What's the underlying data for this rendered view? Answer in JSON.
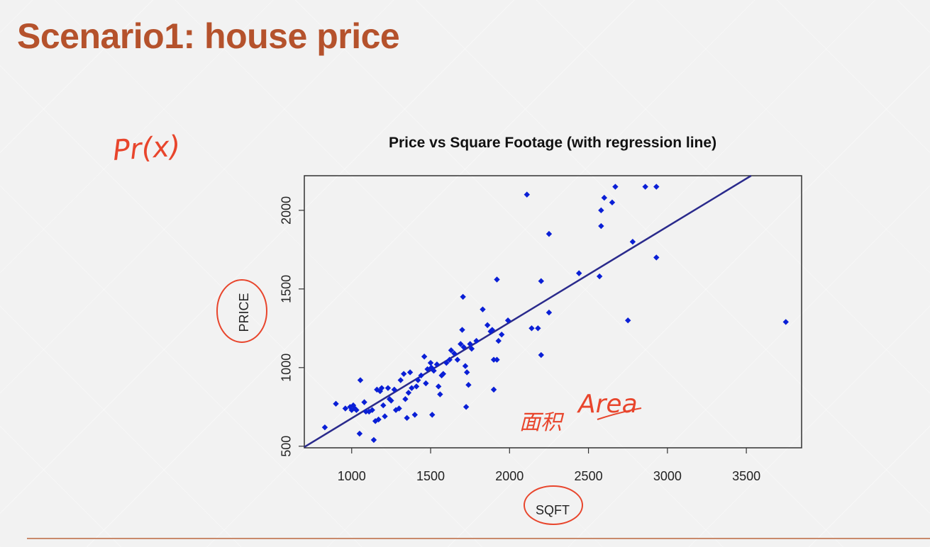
{
  "slide": {
    "title": "Scenario1: house price"
  },
  "annotations": {
    "pr_x": "Pr(x)",
    "area": "Area",
    "area_prefix": "面积"
  },
  "colors": {
    "title": "#b5522c",
    "points": "#0a1fd6",
    "regression_line": "#2a2a8c",
    "ink": "#e8452c"
  },
  "chart_data": {
    "type": "scatter",
    "title": "Price vs Square Footage (with regression line)",
    "xlabel": "SQFT",
    "ylabel": "PRICE",
    "xlim": [
      700,
      3850
    ],
    "ylim": [
      490,
      2220
    ],
    "xticks": [
      1000,
      1500,
      2000,
      2500,
      3000,
      3500
    ],
    "yticks": [
      500,
      1000,
      1500,
      2000
    ],
    "grid": false,
    "regression_line": {
      "x": [
        700,
        3530
      ],
      "y": [
        495,
        2220
      ]
    },
    "points": [
      [
        830,
        620
      ],
      [
        900,
        770
      ],
      [
        960,
        740
      ],
      [
        990,
        750
      ],
      [
        1000,
        730
      ],
      [
        1010,
        760
      ],
      [
        1020,
        740
      ],
      [
        1030,
        730
      ],
      [
        1050,
        580
      ],
      [
        1055,
        920
      ],
      [
        1080,
        780
      ],
      [
        1090,
        720
      ],
      [
        1110,
        720
      ],
      [
        1130,
        730
      ],
      [
        1140,
        540
      ],
      [
        1150,
        660
      ],
      [
        1160,
        860
      ],
      [
        1170,
        670
      ],
      [
        1180,
        850
      ],
      [
        1190,
        870
      ],
      [
        1200,
        760
      ],
      [
        1210,
        690
      ],
      [
        1230,
        870
      ],
      [
        1240,
        800
      ],
      [
        1250,
        790
      ],
      [
        1270,
        860
      ],
      [
        1280,
        730
      ],
      [
        1300,
        740
      ],
      [
        1310,
        920
      ],
      [
        1330,
        960
      ],
      [
        1340,
        800
      ],
      [
        1350,
        680
      ],
      [
        1360,
        840
      ],
      [
        1370,
        970
      ],
      [
        1380,
        870
      ],
      [
        1400,
        700
      ],
      [
        1410,
        880
      ],
      [
        1420,
        920
      ],
      [
        1440,
        950
      ],
      [
        1460,
        1070
      ],
      [
        1470,
        900
      ],
      [
        1480,
        990
      ],
      [
        1500,
        1030
      ],
      [
        1505,
        1000
      ],
      [
        1510,
        700
      ],
      [
        1520,
        980
      ],
      [
        1540,
        1020
      ],
      [
        1550,
        880
      ],
      [
        1560,
        830
      ],
      [
        1570,
        950
      ],
      [
        1580,
        960
      ],
      [
        1600,
        1030
      ],
      [
        1620,
        1050
      ],
      [
        1630,
        1110
      ],
      [
        1650,
        1090
      ],
      [
        1670,
        1050
      ],
      [
        1690,
        1150
      ],
      [
        1700,
        1240
      ],
      [
        1705,
        1450
      ],
      [
        1710,
        1130
      ],
      [
        1720,
        1010
      ],
      [
        1725,
        750
      ],
      [
        1730,
        970
      ],
      [
        1740,
        890
      ],
      [
        1750,
        1150
      ],
      [
        1760,
        1120
      ],
      [
        1790,
        1170
      ],
      [
        1830,
        1370
      ],
      [
        1860,
        1270
      ],
      [
        1880,
        1230
      ],
      [
        1890,
        1240
      ],
      [
        1900,
        860
      ],
      [
        1900,
        1050
      ],
      [
        1920,
        1050
      ],
      [
        1920,
        1560
      ],
      [
        1930,
        1170
      ],
      [
        1950,
        1210
      ],
      [
        1990,
        1300
      ],
      [
        2110,
        2100
      ],
      [
        2140,
        1250
      ],
      [
        2180,
        1250
      ],
      [
        2200,
        1080
      ],
      [
        2200,
        1550
      ],
      [
        2250,
        1350
      ],
      [
        2250,
        1850
      ],
      [
        2440,
        1600
      ],
      [
        2570,
        1580
      ],
      [
        2580,
        1900
      ],
      [
        2580,
        2000
      ],
      [
        2600,
        2080
      ],
      [
        2650,
        2050
      ],
      [
        2670,
        2150
      ],
      [
        2750,
        1300
      ],
      [
        2780,
        1800
      ],
      [
        2860,
        2150
      ],
      [
        2930,
        1700
      ],
      [
        2930,
        2150
      ],
      [
        3750,
        1290
      ]
    ]
  }
}
